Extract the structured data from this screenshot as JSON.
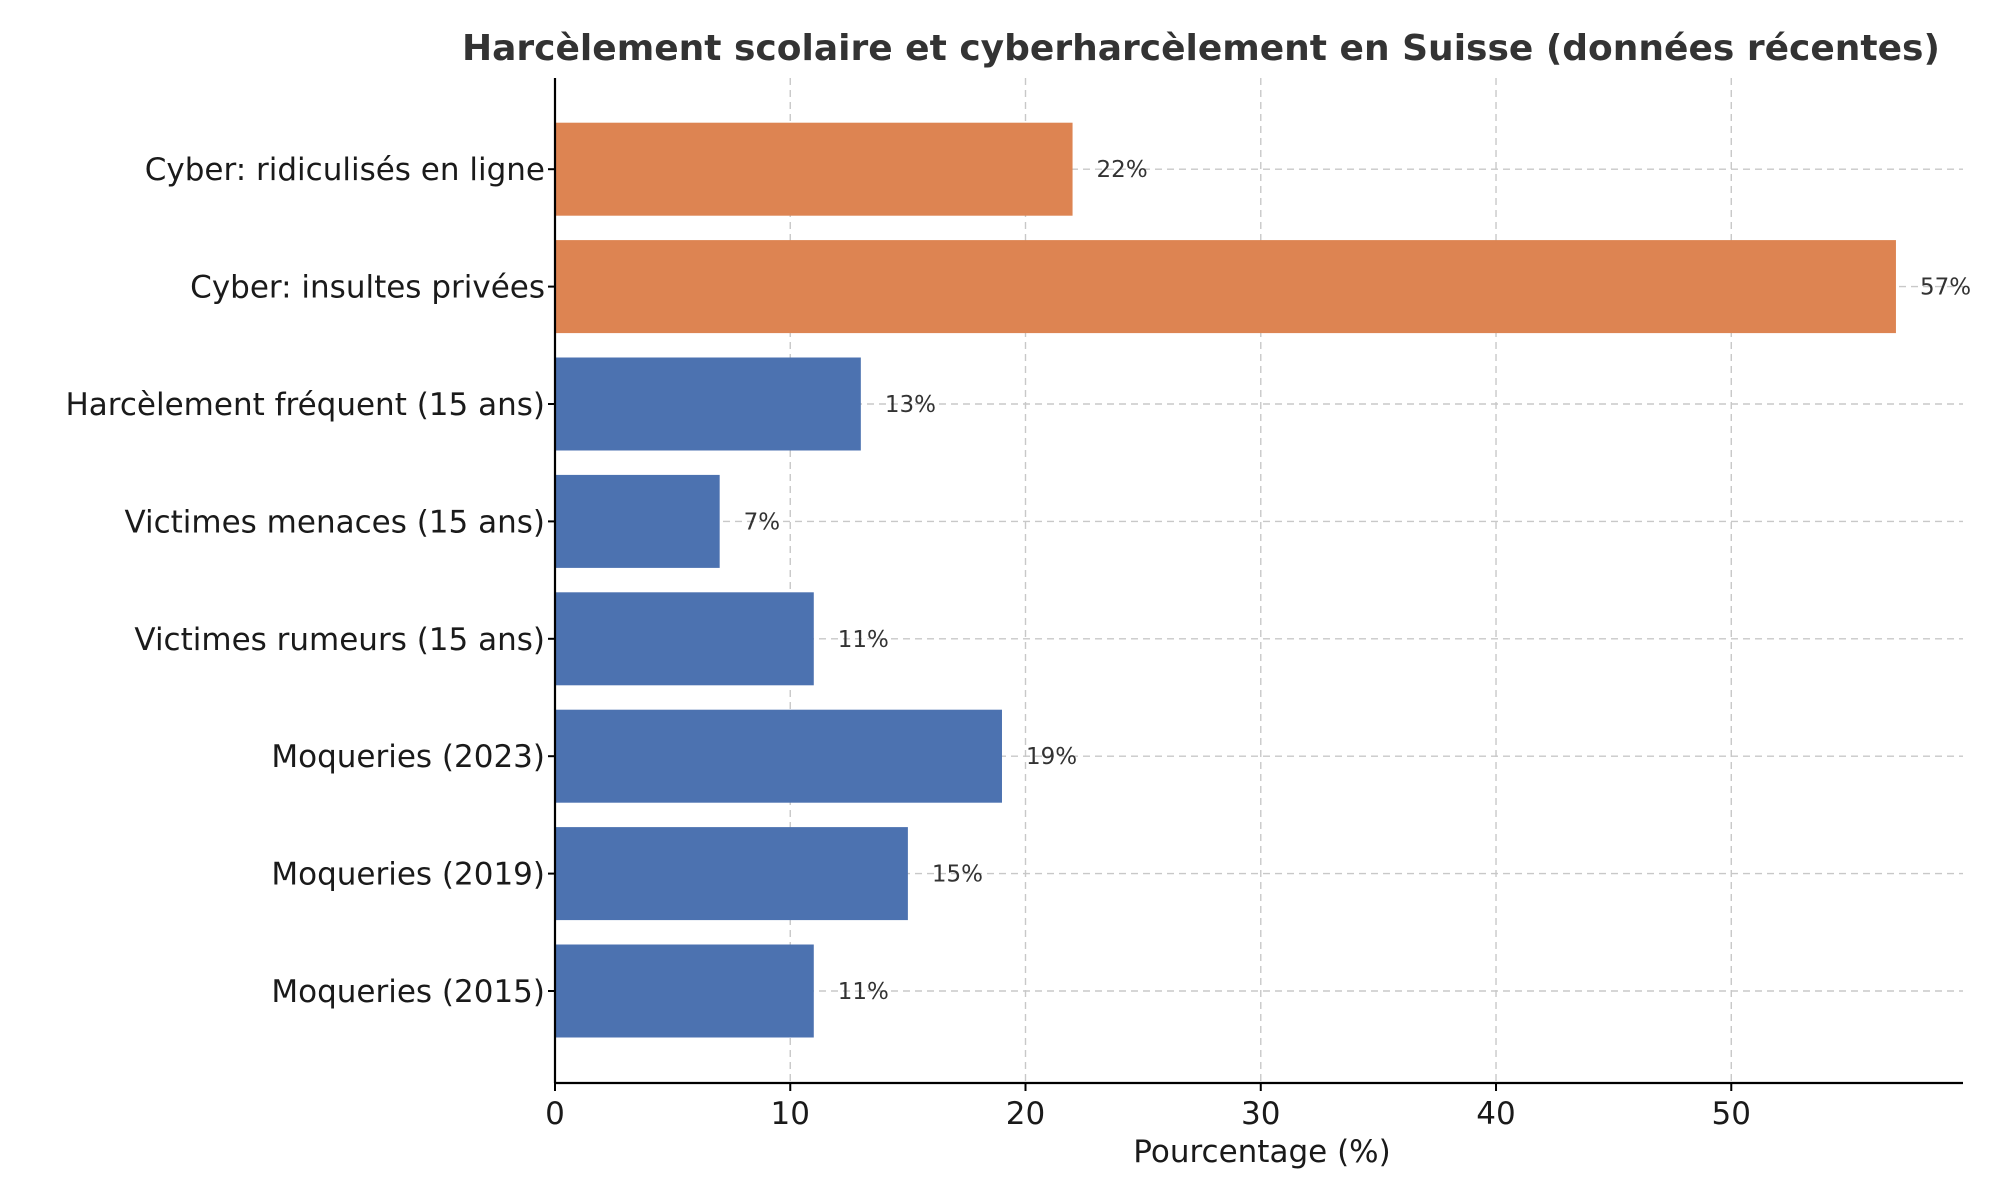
{
  "chart_data": {
    "type": "bar",
    "orientation": "horizontal",
    "title": "Harcèlement scolaire et cyberharcèlement en Suisse (données récentes)",
    "xlabel": "Pourcentage (%)",
    "ylabel": "",
    "xlim": [
      0,
      60
    ],
    "xticks": [
      0,
      10,
      20,
      30,
      40,
      50
    ],
    "grid": true,
    "categories": [
      "Moqueries (2015)",
      "Moqueries (2019)",
      "Moqueries (2023)",
      "Victimes rumeurs (15 ans)",
      "Victimes menaces (15 ans)",
      "Harcèlement fréquent (15 ans)",
      "Cyber: insultes privées",
      "Cyber: ridiculisés en ligne"
    ],
    "values": [
      11,
      15,
      19,
      11,
      7,
      13,
      57,
      22
    ],
    "value_labels": [
      "11%",
      "15%",
      "19%",
      "11%",
      "7%",
      "13%",
      "57%",
      "22%"
    ],
    "bar_colors": [
      "#4c72b0",
      "#4c72b0",
      "#4c72b0",
      "#4c72b0",
      "#4c72b0",
      "#4c72b0",
      "#dd8452",
      "#dd8452"
    ]
  }
}
